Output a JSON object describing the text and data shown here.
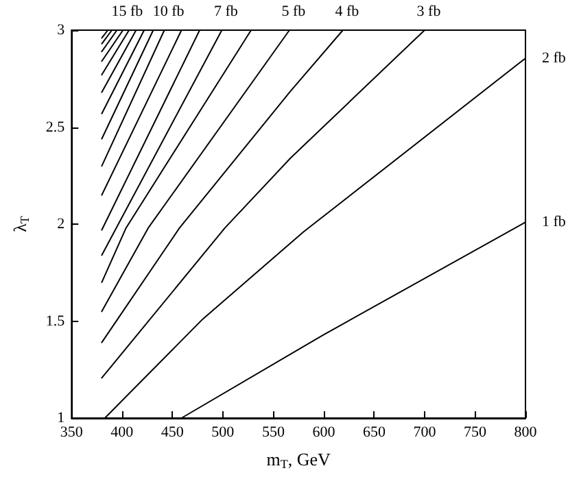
{
  "chart_data": {
    "type": "line",
    "xlabel": "m$_{T}$, GeV",
    "ylabel": "λ$_{T}$",
    "xlim": [
      350,
      800
    ],
    "xticks": [
      350,
      400,
      450,
      500,
      550,
      600,
      650,
      700,
      750,
      800
    ],
    "ylim": [
      1,
      3
    ],
    "yticks": [
      1,
      1.5,
      2,
      2.5,
      3
    ],
    "marker": "none",
    "line_style": "solid",
    "series": [
      {
        "name": "1 fb",
        "color": "#000000",
        "x": [
          459,
          600,
          800
        ],
        "values": [
          1,
          1.43,
          2.01
        ]
      },
      {
        "name": "2 fb",
        "color": "#000000",
        "x": [
          383,
          480,
          580,
          800
        ],
        "values": [
          1,
          1.51,
          1.96,
          2.855
        ]
      },
      {
        "name": "3 fb",
        "color": "#000000",
        "x": [
          380,
          502,
          567,
          700
        ],
        "values": [
          1.207,
          1.98,
          2.34,
          3
        ]
      },
      {
        "name": "4 fb",
        "color": "#000000",
        "x": [
          380,
          457,
          567,
          619
        ],
        "values": [
          1.39,
          1.98,
          2.685,
          3
        ]
      },
      {
        "name": "5 fb",
        "color": "#000000",
        "x": [
          380,
          426,
          566
        ],
        "values": [
          1.55,
          1.98,
          3
        ]
      },
      {
        "color": "#000000",
        "x": [
          380,
          404,
          528
        ],
        "values": [
          1.7,
          1.98,
          3
        ]
      },
      {
        "name": "7 fb",
        "color": "#000000",
        "x": [
          380,
          499
        ],
        "values": [
          1.84,
          3
        ]
      },
      {
        "color": "#000000",
        "x": [
          380,
          477
        ],
        "values": [
          1.97,
          3
        ]
      },
      {
        "color": "#000000",
        "x": [
          380,
          459
        ],
        "values": [
          2.15,
          3
        ]
      },
      {
        "name": "10 fb",
        "color": "#000000",
        "x": [
          380,
          442
        ],
        "values": [
          2.3,
          3
        ]
      },
      {
        "color": "#000000",
        "x": [
          380,
          431
        ],
        "values": [
          2.44,
          3
        ]
      },
      {
        "color": "#000000",
        "x": [
          380,
          422
        ],
        "values": [
          2.57,
          3
        ]
      },
      {
        "color": "#000000",
        "x": [
          380,
          414
        ],
        "values": [
          2.68,
          3
        ]
      },
      {
        "color": "#000000",
        "x": [
          380,
          407
        ],
        "values": [
          2.77,
          3
        ]
      },
      {
        "name": "15 fb",
        "color": "#000000",
        "x": [
          380,
          401
        ],
        "values": [
          2.84,
          3
        ]
      },
      {
        "color": "#000000",
        "x": [
          380,
          395
        ],
        "values": [
          2.89,
          3
        ]
      },
      {
        "color": "#000000",
        "x": [
          380,
          390
        ],
        "values": [
          2.93,
          3
        ]
      },
      {
        "color": "#000000",
        "x": [
          380,
          386
        ],
        "values": [
          2.96,
          3
        ]
      }
    ]
  }
}
